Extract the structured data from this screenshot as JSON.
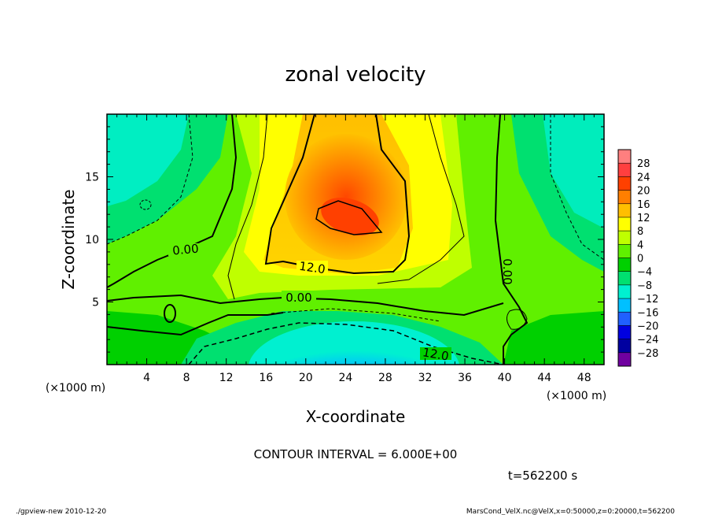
{
  "chart_data": {
    "type": "heatmap",
    "title": "zonal velocity",
    "xlabel": "X-coordinate",
    "ylabel": "Z-coordinate",
    "x_unit_left": "(×1000 m)",
    "x_unit_right": "(×1000 m)",
    "xlim": [
      0,
      50
    ],
    "ylim": [
      0,
      20
    ],
    "x_ticks": [
      "4",
      "8",
      "12",
      "16",
      "20",
      "24",
      "28",
      "32",
      "36",
      "40",
      "44",
      "48"
    ],
    "y_ticks": [
      "5",
      "10",
      "15"
    ],
    "colorbar_ticks": [
      "28",
      "24",
      "20",
      "16",
      "12",
      "8",
      "4",
      "0",
      "−4",
      "−8",
      "−12",
      "−16",
      "−20",
      "−24",
      "−28"
    ],
    "colorbar_colors": [
      "#ff7f7f",
      "#ff3f3f",
      "#ff4000",
      "#ff7f00",
      "#ffbf00",
      "#ffff00",
      "#bfff00",
      "#60f000",
      "#00d000",
      "#00e070",
      "#00f0d0",
      "#00c0ff",
      "#2060ff",
      "#0000e0",
      "#0000a0",
      "#7000a0"
    ],
    "contour_labels": [
      "0.00",
      "12.0",
      "0.00",
      "12.0",
      "0.00"
    ],
    "contour_interval": "CONTOUR INTERVAL = 6.000E+00",
    "time_label": "t=562200 s",
    "footer_left": "./gpview-new 2010-12-20",
    "footer_right": "MarsCond_VelX.nc@VelX,x=0:50000,z=0:20000,t=562200"
  }
}
